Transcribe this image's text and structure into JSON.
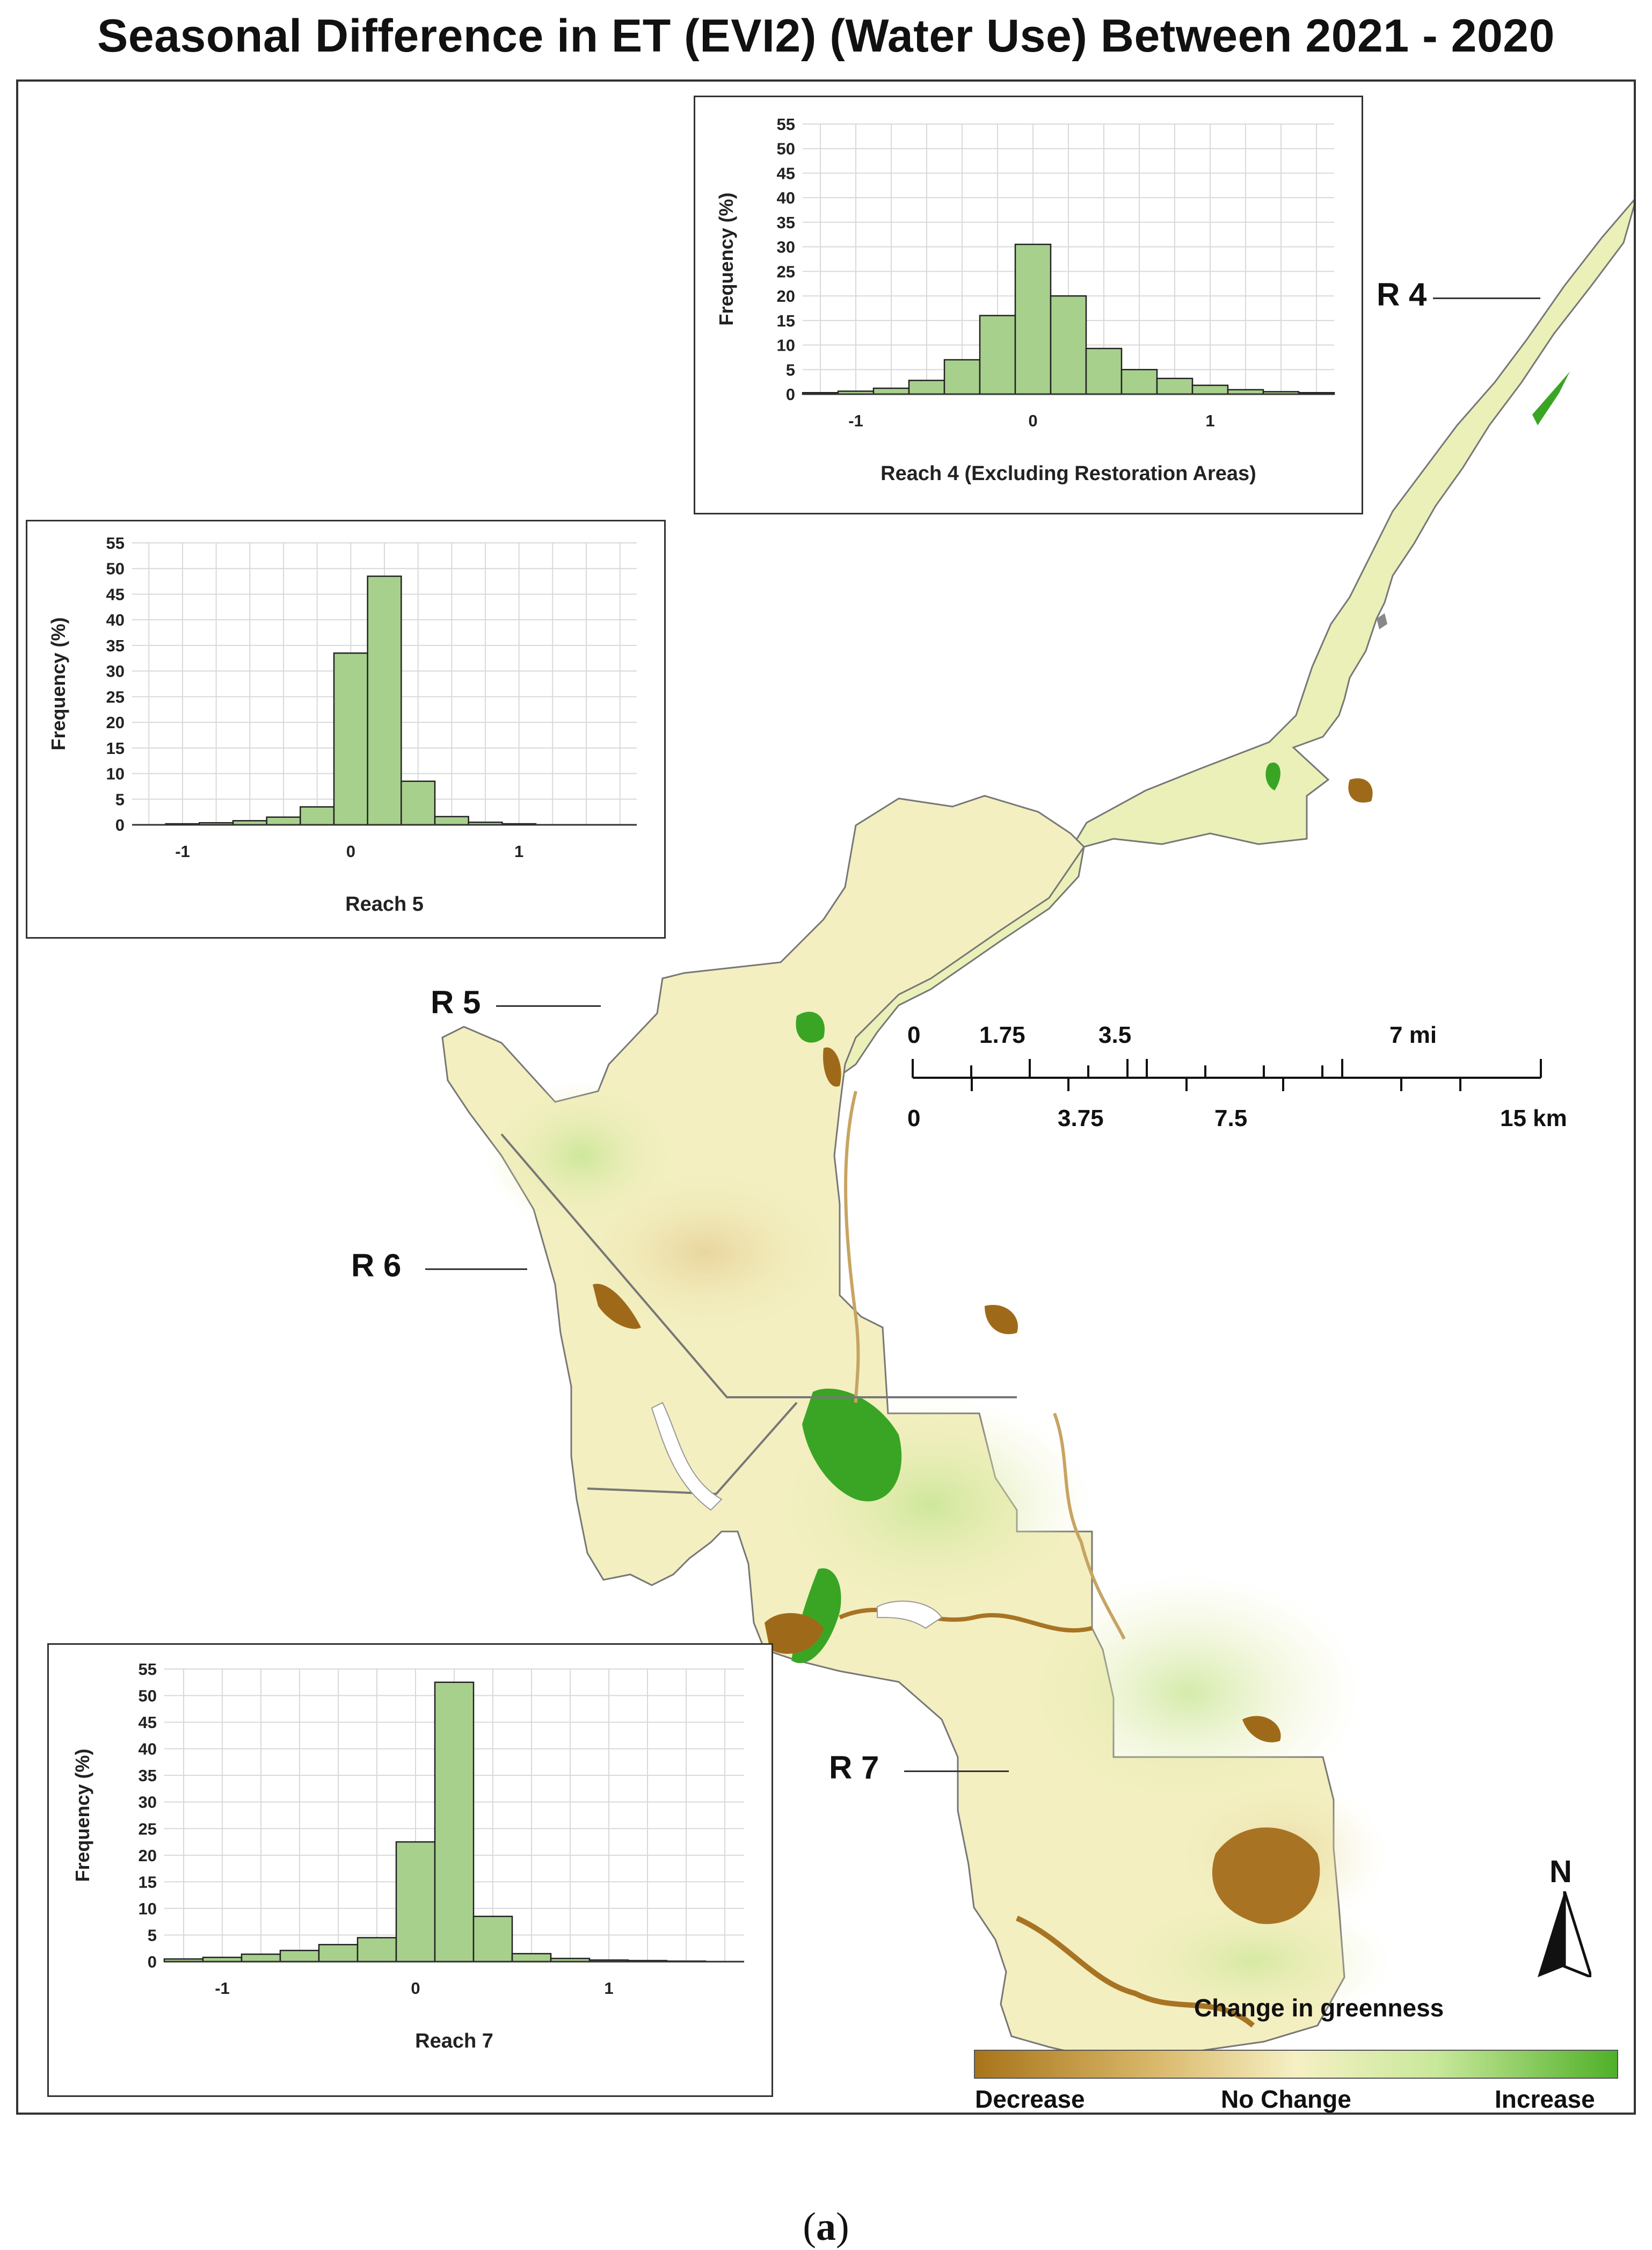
{
  "title": "Seasonal Difference in ET (EVI2) (Water Use) Between 2021 - 2020",
  "caption": {
    "open": "(",
    "letter": "a",
    "close": ")"
  },
  "reach_labels": {
    "r4": "R 4",
    "r5": "R 5",
    "r6": "R 6",
    "r7": "R 7"
  },
  "scale_bar": {
    "mi_labels": [
      "0",
      "1.75",
      "3.5",
      "7 mi"
    ],
    "km_labels": [
      "0",
      "3.75",
      "7.5",
      "15 km"
    ]
  },
  "north_arrow": {
    "label": "N",
    "icon": "north-arrow-icon"
  },
  "legend": {
    "title": "Change in greenness",
    "low": "Decrease",
    "mid": "No Change",
    "high": "Increase",
    "colors": {
      "decrease": "#a8741a",
      "no_change": "#f6f0c4",
      "increase": "#4fb028"
    }
  },
  "colors": {
    "bar_fill": "#a8d08d",
    "bar_stroke": "#222222",
    "grid": "#d9d9d9",
    "map_base": "#f3efc0"
  },
  "chart_data": [
    {
      "type": "bar",
      "id": "reach4",
      "xlabel": "Reach 4 (Excluding Restoration Areas)",
      "ylabel": "Frequency (%)",
      "ylim": [
        0,
        55
      ],
      "yticks": [
        0,
        5,
        10,
        15,
        20,
        25,
        30,
        35,
        40,
        45,
        50,
        55
      ],
      "xlim": [
        -1.3,
        1.7
      ],
      "xticks": [
        -1,
        0,
        1
      ],
      "bin_width": 0.2,
      "bins": [
        {
          "x": -1.2,
          "value": 0.3
        },
        {
          "x": -1.0,
          "value": 0.6
        },
        {
          "x": -0.8,
          "value": 1.2
        },
        {
          "x": -0.6,
          "value": 2.8
        },
        {
          "x": -0.4,
          "value": 7.0
        },
        {
          "x": -0.2,
          "value": 16.0
        },
        {
          "x": 0.0,
          "value": 30.5
        },
        {
          "x": 0.2,
          "value": 20.0
        },
        {
          "x": 0.4,
          "value": 9.3
        },
        {
          "x": 0.6,
          "value": 5.0
        },
        {
          "x": 0.8,
          "value": 3.2
        },
        {
          "x": 1.0,
          "value": 1.8
        },
        {
          "x": 1.2,
          "value": 0.9
        },
        {
          "x": 1.4,
          "value": 0.5
        },
        {
          "x": 1.6,
          "value": 0.3
        }
      ]
    },
    {
      "type": "bar",
      "id": "reach5",
      "xlabel": "Reach 5",
      "ylabel": "Frequency (%)",
      "ylim": [
        0,
        55
      ],
      "yticks": [
        0,
        5,
        10,
        15,
        20,
        25,
        30,
        35,
        40,
        45,
        50,
        55
      ],
      "xlim": [
        -1.3,
        1.7
      ],
      "xticks": [
        -1,
        0,
        1
      ],
      "bin_width": 0.2,
      "bins": [
        {
          "x": -1.0,
          "value": 0.2
        },
        {
          "x": -0.8,
          "value": 0.4
        },
        {
          "x": -0.6,
          "value": 0.8
        },
        {
          "x": -0.4,
          "value": 1.5
        },
        {
          "x": -0.2,
          "value": 3.5
        },
        {
          "x": 0.0,
          "value": 33.5
        },
        {
          "x": 0.2,
          "value": 48.5
        },
        {
          "x": 0.4,
          "value": 8.5
        },
        {
          "x": 0.6,
          "value": 1.6
        },
        {
          "x": 0.8,
          "value": 0.5
        },
        {
          "x": 1.0,
          "value": 0.2
        }
      ]
    },
    {
      "type": "bar",
      "id": "reach7",
      "xlabel": "Reach 7",
      "ylabel": "Frequency (%)",
      "ylim": [
        0,
        55
      ],
      "yticks": [
        0,
        5,
        10,
        15,
        20,
        25,
        30,
        35,
        40,
        45,
        50,
        55
      ],
      "xlim": [
        -1.3,
        1.7
      ],
      "xticks": [
        -1,
        0,
        1
      ],
      "bin_width": 0.2,
      "bins": [
        {
          "x": -1.2,
          "value": 0.5
        },
        {
          "x": -1.0,
          "value": 0.8
        },
        {
          "x": -0.8,
          "value": 1.4
        },
        {
          "x": -0.6,
          "value": 2.1
        },
        {
          "x": -0.4,
          "value": 3.2
        },
        {
          "x": -0.2,
          "value": 4.5
        },
        {
          "x": 0.0,
          "value": 22.5
        },
        {
          "x": 0.2,
          "value": 52.5
        },
        {
          "x": 0.4,
          "value": 8.5
        },
        {
          "x": 0.6,
          "value": 1.5
        },
        {
          "x": 0.8,
          "value": 0.6
        },
        {
          "x": 1.0,
          "value": 0.3
        },
        {
          "x": 1.2,
          "value": 0.2
        },
        {
          "x": 1.4,
          "value": 0.1
        }
      ]
    }
  ]
}
